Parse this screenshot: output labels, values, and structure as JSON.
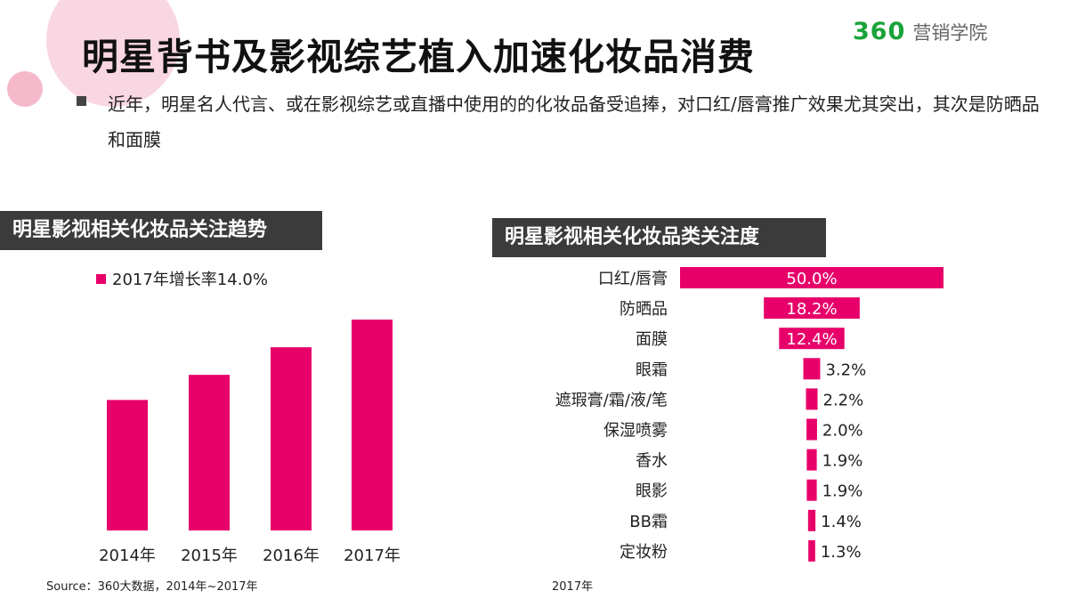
{
  "header": {
    "title": "明星背书及影视综艺植入加速化妆品消费",
    "logo_number": "360",
    "logo_text": "营销学院"
  },
  "bullet": {
    "text": "近年，明星名人代言、或在影视综艺或直播中使用的的化妆品备受追捧，对口红/唇膏推广效果尤其突出，其次是防晒品和面膜"
  },
  "left_panel": {
    "heading": "明星影视相关化妆品关注趋势",
    "source": "Source：360大数据，2014年~2017年"
  },
  "right_panel": {
    "heading": "明星影视相关化妆品类关注度",
    "year_note": "2017年"
  },
  "colors": {
    "bar": "#e8006a",
    "header_bg": "#3b3b3b"
  },
  "chart_data": [
    {
      "type": "bar",
      "categories": [
        "2014年",
        "2015年",
        "2016年",
        "2017年"
      ],
      "values": [
        52,
        62,
        73,
        84
      ],
      "legend": "2017年增长率14.0%",
      "ylim": [
        0,
        100
      ]
    },
    {
      "type": "bar",
      "orientation": "horizontal",
      "categories": [
        "口红/唇膏",
        "防晒品",
        "面膜",
        "眼霜",
        "遮瑕膏/霜/液/笔",
        "保湿喷雾",
        "香水",
        "眼影",
        "BB霜",
        "定妆粉"
      ],
      "values": [
        50.0,
        18.2,
        12.4,
        3.2,
        2.2,
        2.0,
        1.9,
        1.9,
        1.4,
        1.3
      ],
      "labels": [
        "50.0%",
        "18.2%",
        "12.4%",
        "3.2%",
        "2.2%",
        "2.0%",
        "1.9%",
        "1.9%",
        "1.4%",
        "1.3%"
      ],
      "xlim": [
        0,
        50
      ]
    }
  ]
}
